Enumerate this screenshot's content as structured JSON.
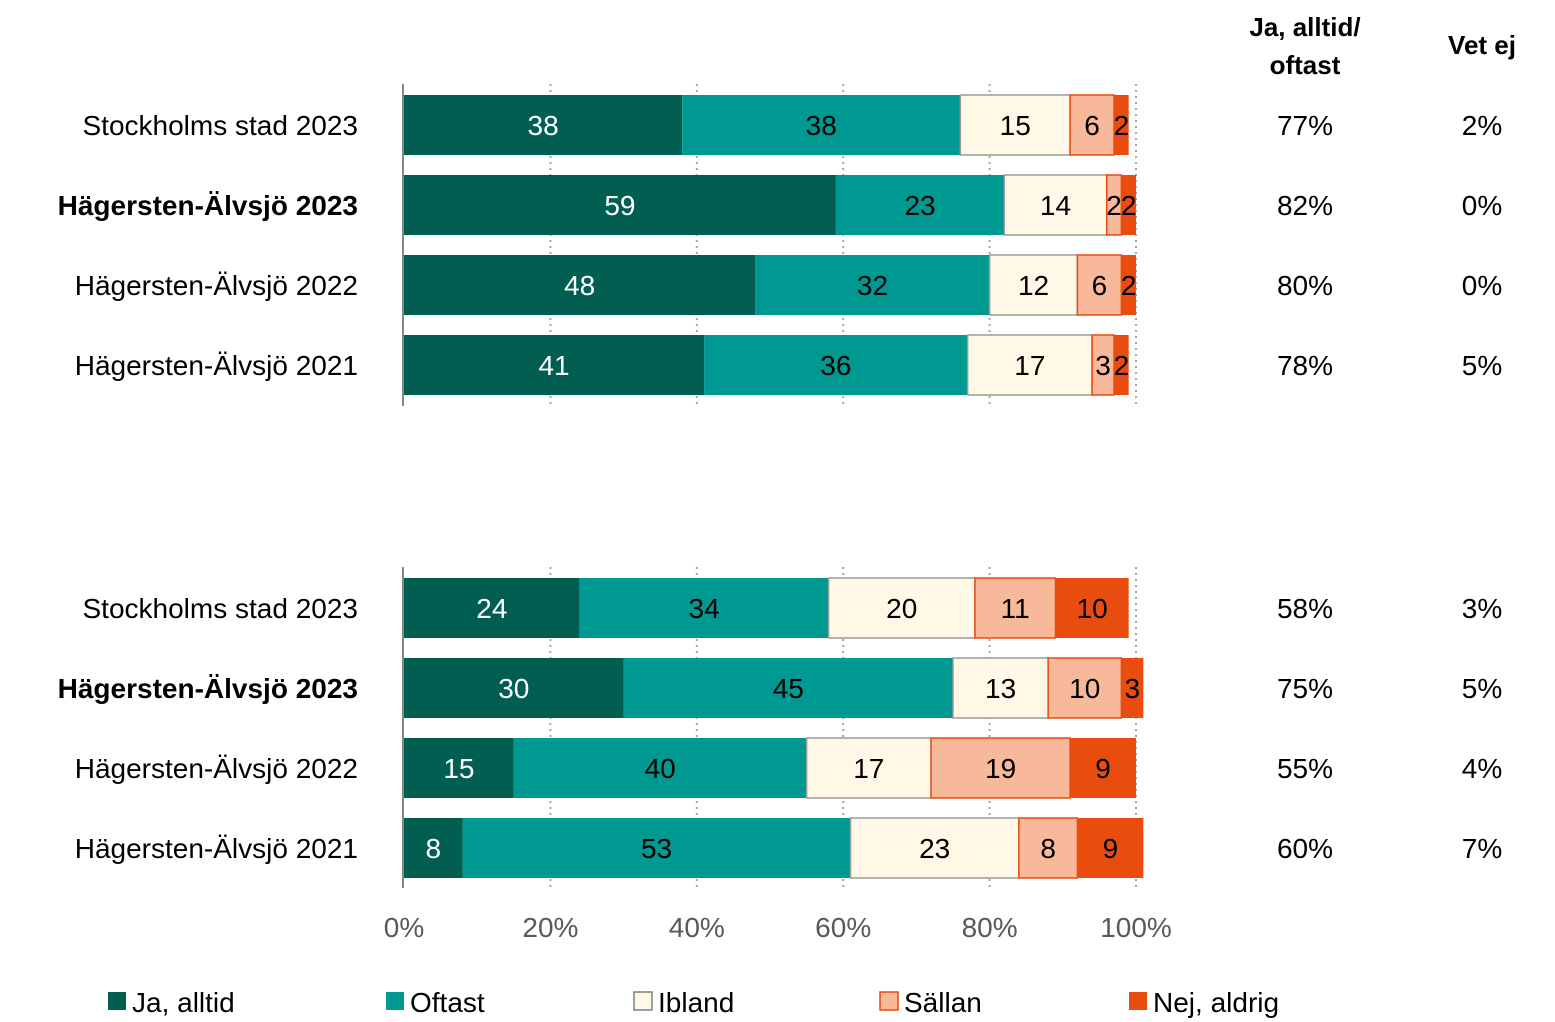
{
  "chart_data": {
    "type": "bar",
    "orientation": "horizontal",
    "stacked": true,
    "xlim": [
      0,
      100
    ],
    "x_ticks": [
      "0%",
      "20%",
      "40%",
      "60%",
      "80%",
      "100%"
    ],
    "grid": "vertical-dotted",
    "legend_position": "bottom",
    "series": [
      {
        "name": "Ja, alltid",
        "color": "#025e50"
      },
      {
        "name": "Oftast",
        "color": "#009991"
      },
      {
        "name": "Ibland",
        "color": "#fff8e6"
      },
      {
        "name": "Sällan",
        "color": "#f7b999"
      },
      {
        "name": "Nej, aldrig",
        "color": "#e84c0f"
      }
    ],
    "side_headers": [
      "Ja, alltid/ oftast",
      "Vet ej"
    ],
    "panels": [
      {
        "rows": [
          {
            "label": "Stockholms stad 2023",
            "bold": false,
            "values": [
              38,
              38,
              15,
              6,
              2
            ],
            "ja_oftast": "77%",
            "vet_ej": "2%"
          },
          {
            "label": "Hägersten-Älvsjö 2023",
            "bold": true,
            "values": [
              59,
              23,
              14,
              2,
              2
            ],
            "ja_oftast": "82%",
            "vet_ej": "0%"
          },
          {
            "label": "Hägersten-Älvsjö 2022",
            "bold": false,
            "values": [
              48,
              32,
              12,
              6,
              2
            ],
            "ja_oftast": "80%",
            "vet_ej": "0%"
          },
          {
            "label": "Hägersten-Älvsjö 2021",
            "bold": false,
            "values": [
              41,
              36,
              17,
              3,
              2
            ],
            "ja_oftast": "78%",
            "vet_ej": "5%"
          }
        ]
      },
      {
        "rows": [
          {
            "label": "Stockholms stad 2023",
            "bold": false,
            "values": [
              24,
              34,
              20,
              11,
              10
            ],
            "ja_oftast": "58%",
            "vet_ej": "3%"
          },
          {
            "label": "Hägersten-Älvsjö 2023",
            "bold": true,
            "values": [
              30,
              45,
              13,
              10,
              3
            ],
            "ja_oftast": "75%",
            "vet_ej": "5%"
          },
          {
            "label": "Hägersten-Älvsjö 2022",
            "bold": false,
            "values": [
              15,
              40,
              17,
              19,
              9
            ],
            "ja_oftast": "55%",
            "vet_ej": "4%"
          },
          {
            "label": "Hägersten-Älvsjö 2021",
            "bold": false,
            "values": [
              8,
              53,
              23,
              8,
              9
            ],
            "ja_oftast": "60%",
            "vet_ej": "7%"
          }
        ]
      }
    ]
  }
}
